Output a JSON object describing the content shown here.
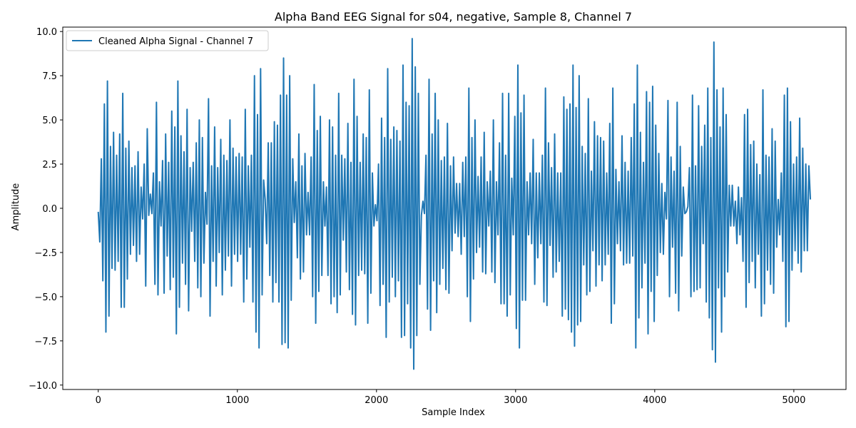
{
  "chart_data": {
    "type": "line",
    "title": "Alpha Band EEG Signal for s04, negative, Sample 8, Channel 7",
    "xlabel": "Sample Index",
    "ylabel": "Amplitude",
    "xlim": [
      -255,
      5375
    ],
    "ylim": [
      -10.25,
      10.25
    ],
    "x_ticks": [
      0,
      1000,
      2000,
      3000,
      4000,
      5000
    ],
    "x_tick_labels": [
      "0",
      "1000",
      "2000",
      "3000",
      "4000",
      "5000"
    ],
    "y_ticks": [
      -10.0,
      -7.5,
      -5.0,
      -2.5,
      0.0,
      2.5,
      5.0,
      7.5,
      10.0
    ],
    "y_tick_labels": [
      "−10.0",
      "−7.5",
      "−5.0",
      "−2.5",
      "0.0",
      "2.5",
      "5.0",
      "7.5",
      "10.0"
    ],
    "grid": false,
    "legend_position": "upper-left",
    "series": [
      {
        "name": "Cleaned Alpha Signal - Channel 7",
        "color": "#1f77b4",
        "x_start": 0,
        "x_end": 5119,
        "extrema": [
          -0.2,
          -1.9,
          2.8,
          -4.1,
          5.9,
          -7.0,
          7.2,
          -6.1,
          3.5,
          -3.4,
          4.3,
          -3.5,
          3.0,
          -3.0,
          4.2,
          -5.6,
          6.5,
          -5.6,
          3.4,
          -4.0,
          3.8,
          -2.6,
          2.3,
          -2.1,
          2.4,
          -3.0,
          3.2,
          -2.6,
          1.2,
          -0.6,
          2.5,
          -4.4,
          4.5,
          -0.4,
          0.8,
          -0.3,
          2.0,
          -4.3,
          6.0,
          -4.9,
          1.5,
          -1.0,
          2.7,
          -4.8,
          4.2,
          -2.7,
          2.6,
          -4.6,
          5.5,
          -3.9,
          4.6,
          -7.1,
          7.2,
          -5.6,
          4.1,
          -3.1,
          3.2,
          -4.3,
          5.6,
          -5.8,
          2.3,
          -1.3,
          2.6,
          -3.0,
          3.7,
          -4.5,
          5.0,
          -5.0,
          4.0,
          -3.1,
          0.9,
          -0.9,
          6.2,
          -6.1,
          2.4,
          -3.0,
          4.6,
          -4.4,
          2.3,
          -2.5,
          3.9,
          -4.9,
          3.0,
          -3.5,
          2.7,
          -2.7,
          5.0,
          -4.4,
          3.4,
          -2.6,
          2.9,
          -3.0,
          3.1,
          -2.6,
          2.9,
          -5.3,
          5.6,
          -4.0,
          2.4,
          -2.2,
          3.0,
          -5.3,
          7.5,
          -7.0,
          5.3,
          -7.9,
          7.9,
          -4.9,
          1.6,
          0.5,
          -2.0,
          3.7,
          -3.8,
          3.7,
          -5.3,
          4.9,
          -4.2,
          4.7,
          -5.3,
          6.4,
          -7.7,
          8.5,
          -7.6,
          6.4,
          -7.9,
          7.5,
          -5.2,
          2.8,
          -0.8,
          1.5,
          -2.8,
          4.2,
          -4.0,
          2.4,
          -3.6,
          3.1,
          -1.5,
          0.9,
          -1.5,
          2.9,
          -5.0,
          7.0,
          -6.5,
          4.4,
          -4.7,
          5.2,
          -3.8,
          1.5,
          -1.0,
          1.2,
          -3.8,
          5.0,
          -5.4,
          4.6,
          -5.0,
          3.0,
          -5.9,
          6.5,
          -4.9,
          3.0,
          -1.8,
          2.8,
          -3.6,
          4.8,
          -4.6,
          2.6,
          -6.0,
          7.3,
          -6.6,
          5.2,
          -3.8,
          2.6,
          -3.5,
          4.2,
          -3.7,
          4.0,
          -6.5,
          6.7,
          -4.8,
          2.0,
          -1.0,
          0.2,
          -0.7,
          2.5,
          -5.5,
          5.1,
          -4.3,
          4.0,
          -7.3,
          7.9,
          -5.3,
          3.9,
          -3.9,
          4.6,
          -5.0,
          4.4,
          -4.1,
          3.8,
          -7.3,
          8.1,
          -7.2,
          6.0,
          -5.4,
          5.8,
          -7.9,
          9.6,
          -9.1,
          8.0,
          -7.2,
          6.5,
          -4.3,
          -0.4,
          0.4,
          -0.3,
          3.0,
          -5.7,
          7.3,
          -6.9,
          4.2,
          -4.1,
          6.5,
          -5.9,
          5.0,
          -4.3,
          2.7,
          -3.4,
          2.9,
          -4.6,
          4.8,
          -4.8,
          2.4,
          -2.4,
          2.9,
          -1.4,
          1.4,
          -1.6,
          1.4,
          -2.6,
          2.6,
          -1.6,
          2.9,
          -5.0,
          6.8,
          -6.4,
          4.0,
          -4.0,
          5.0,
          -2.5,
          1.8,
          -2.2,
          2.9,
          -3.6,
          4.3,
          -3.7,
          1.5,
          -1.0,
          2.1,
          -3.6,
          5.0,
          -4.2,
          1.5,
          -1.5,
          3.7,
          -5.4,
          6.5,
          -5.4,
          3.0,
          -6.1,
          6.5,
          -4.9,
          1.7,
          -1.5,
          5.2,
          -6.8,
          8.1,
          -7.9,
          5.4,
          -5.2,
          6.4,
          -5.2,
          1.5,
          -1.5,
          2.0,
          -2.0,
          3.9,
          -4.3,
          2.0,
          -2.8,
          2.0,
          -2.0,
          3.0,
          -5.3,
          6.8,
          -5.5,
          3.7,
          -2.1,
          2.3,
          -3.9,
          4.2,
          -3.6,
          2.0,
          -3.0,
          2.0,
          -6.1,
          6.3,
          -5.7,
          5.6,
          -6.3,
          5.9,
          -7.0,
          8.1,
          -7.8,
          5.7,
          -6.6,
          7.5,
          -6.4,
          3.5,
          -3.2,
          3.1,
          -4.9,
          6.2,
          -4.7,
          2.1,
          -2.4,
          4.9,
          -4.4,
          4.1,
          -3.2,
          4.0,
          -4.1,
          3.8,
          -3.2,
          2.0,
          -2.6,
          4.8,
          -6.5,
          6.8,
          -5.4,
          2.2,
          -2.0,
          1.5,
          -2.4,
          4.1,
          -3.2,
          2.6,
          -3.1,
          2.1,
          -3.1,
          4.0,
          -2.7,
          5.9,
          -7.9,
          8.1,
          -6.2,
          4.3,
          -4.5,
          2.6,
          -3.1,
          6.6,
          -7.1,
          6.0,
          -4.7,
          6.9,
          -6.4,
          4.7,
          -3.8,
          3.1,
          -2.5,
          1.4,
          -2.6,
          0.9,
          -0.6,
          6.1,
          -5.0,
          2.9,
          -2.2,
          2.1,
          -4.8,
          6.0,
          -5.8,
          3.5,
          -2.7,
          1.2,
          -0.3,
          -0.2,
          0.1,
          2.3,
          -5.0,
          6.4,
          -4.7,
          2.4,
          -4.6,
          5.8,
          -4.5,
          3.5,
          -2.0,
          4.7,
          -5.3,
          6.8,
          -6.2,
          4.0,
          -8.0,
          9.4,
          -8.7,
          6.7,
          -4.5,
          4.6,
          -7.0,
          6.8,
          -5.0,
          5.3,
          -3.6,
          1.3,
          -1.0,
          1.3,
          -1.0,
          0.4,
          -2.0,
          1.2,
          -1.5,
          0.6,
          -3.0,
          5.3,
          -5.6,
          5.6,
          -4.2,
          3.6,
          -3.0,
          3.8,
          -4.5,
          2.5,
          -2.6,
          1.9,
          -6.1,
          6.7,
          -5.4,
          3.0,
          -3.5,
          2.9,
          -4.3,
          4.5,
          -4.8,
          3.8,
          -2.2,
          0.5,
          -1.5,
          2.0,
          -3.0,
          6.4,
          -6.7,
          6.8,
          -6.4,
          4.9,
          -3.5,
          2.5,
          -2.4,
          2.9,
          -3.1,
          5.1,
          -3.6,
          3.4,
          -2.4,
          2.5,
          -2.4,
          2.4,
          0.5
        ]
      }
    ]
  }
}
